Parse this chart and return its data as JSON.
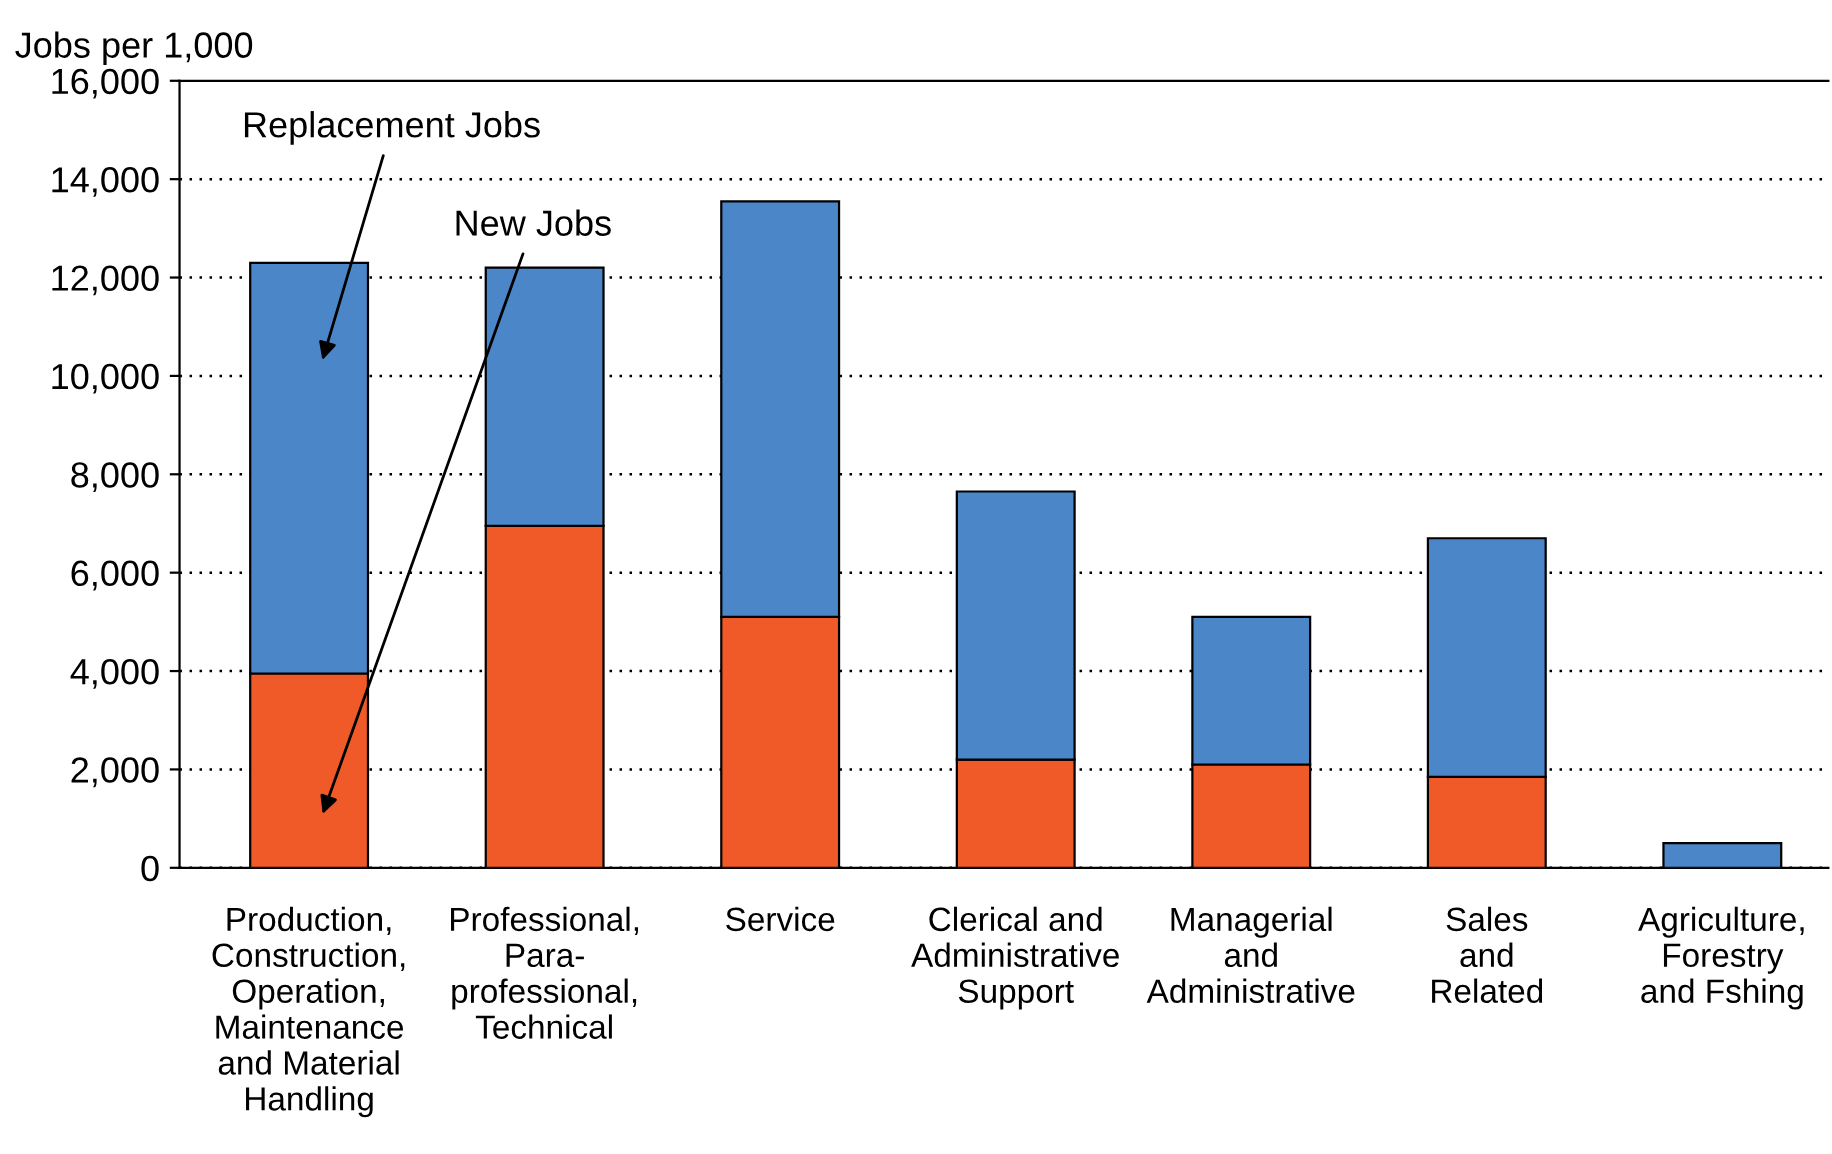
{
  "chart_data": {
    "type": "bar",
    "stacked": true,
    "ylabel": "Jobs per 1,000",
    "categories": [
      "Production,\nConstruction,\nOperation,\nMaintenance\nand Material\nHandling",
      "Professional,\nPara-\nprofessional,\nTechnical",
      "Service",
      "Clerical and\nAdministrative\nSupport",
      "Managerial\nand\nAdministrative",
      "Sales\nand\nRelated",
      "Agriculture,\nForestry\nand Fshing"
    ],
    "series": [
      {
        "name": "New Jobs",
        "color": "#f05a28",
        "values": [
          3950,
          6950,
          5100,
          2200,
          2100,
          1850,
          0
        ]
      },
      {
        "name": "Replacement Jobs",
        "color": "#4a86c8",
        "values": [
          8350,
          5250,
          8450,
          5450,
          3000,
          4850,
          500
        ]
      }
    ],
    "ylim": [
      0,
      16000
    ],
    "yticks": [
      {
        "value": 0,
        "label": "0"
      },
      {
        "value": 2000,
        "label": "2,000"
      },
      {
        "value": 4000,
        "label": "4,000"
      },
      {
        "value": 6000,
        "label": "6,000"
      },
      {
        "value": 8000,
        "label": "8,000"
      },
      {
        "value": 10000,
        "label": "10,000"
      },
      {
        "value": 12000,
        "label": "12,000"
      },
      {
        "value": 14000,
        "label": "14,000"
      },
      {
        "value": 16000,
        "label": "16,000"
      }
    ],
    "grid": "y",
    "legend": false
  }
}
